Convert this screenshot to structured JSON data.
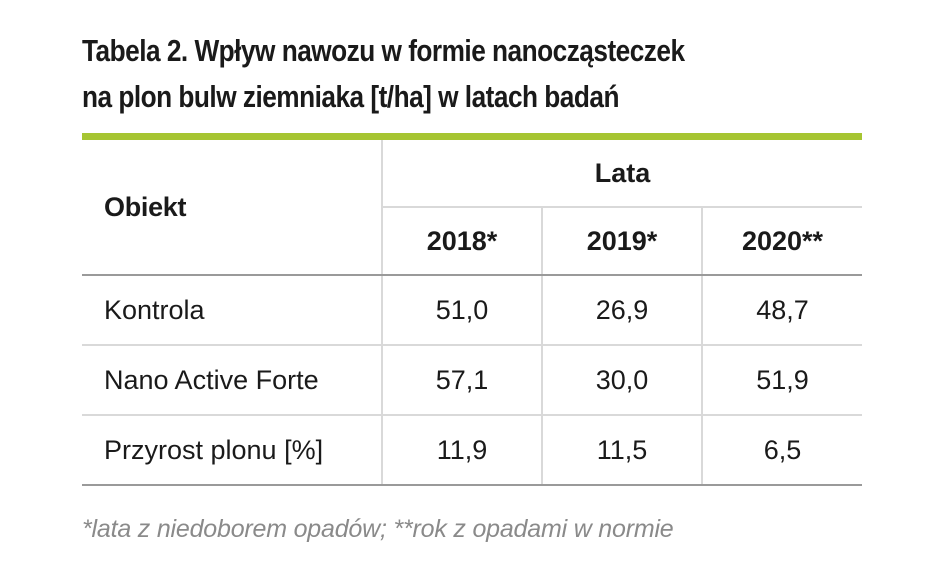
{
  "title": {
    "line1": "Tabela 2. Wpływ nawozu w formie nanocząsteczek",
    "line2": "na plon bulw ziemniaka [t/ha] w latach badań"
  },
  "colors": {
    "accent_rule": "#a6c532",
    "text": "#1a1a1a",
    "footnote_text": "#8a8a8a"
  },
  "table": {
    "header_object": "Obiekt",
    "header_group": "Lata",
    "years": [
      "2018*",
      "2019*",
      "2020**"
    ],
    "rows": [
      {
        "label": "Kontrola",
        "values": [
          "51,0",
          "26,9",
          "48,7"
        ]
      },
      {
        "label": "Nano Active Forte",
        "values": [
          "57,1",
          "30,0",
          "51,9"
        ]
      },
      {
        "label": "Przyrost plonu [%]",
        "values": [
          "11,9",
          "11,5",
          "6,5"
        ]
      }
    ]
  },
  "footnote": "*lata z niedoborem opadów; **rok z opadami w normie"
}
